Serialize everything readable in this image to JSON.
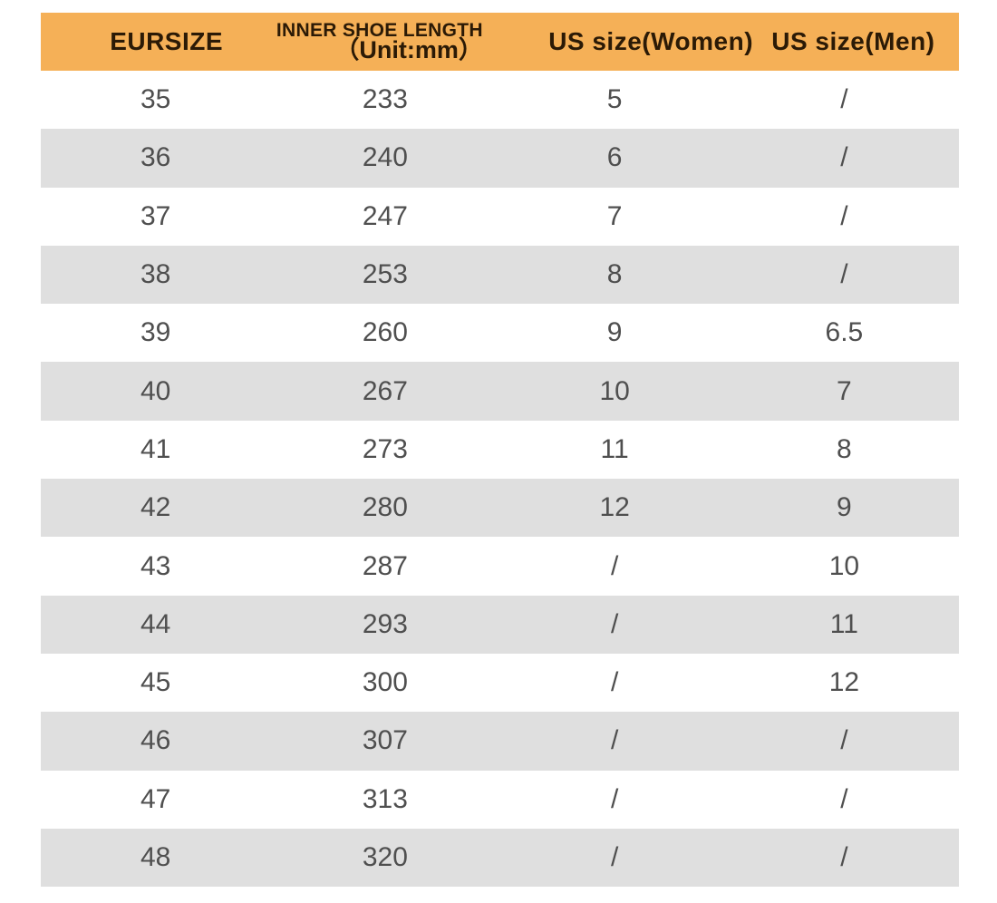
{
  "colors": {
    "header_bg": "#F5B057",
    "header_text": "#2B1A06",
    "stripe": "#DFDFDF",
    "row_bg": "#FFFFFF",
    "row_text": "#4F4F4F",
    "page_bg": "#FFFFFF"
  },
  "chart_data": {
    "type": "table",
    "title": "",
    "columns": {
      "eursize": "EURSIZE",
      "inner_length_line1": "INNER SHOE LENGTH",
      "inner_length_line2": "（Unit:mm）",
      "us_women": "US size(Women)",
      "us_men": "US size(Men)"
    },
    "rows": [
      [
        "35",
        "233",
        "5",
        "/"
      ],
      [
        "36",
        "240",
        "6",
        "/"
      ],
      [
        "37",
        "247",
        "7",
        "/"
      ],
      [
        "38",
        "253",
        "8",
        "/"
      ],
      [
        "39",
        "260",
        "9",
        "6.5"
      ],
      [
        "40",
        "267",
        "10",
        "7"
      ],
      [
        "41",
        "273",
        "11",
        "8"
      ],
      [
        "42",
        "280",
        "12",
        "9"
      ],
      [
        "43",
        "287",
        "/",
        "10"
      ],
      [
        "44",
        "293",
        "/",
        "11"
      ],
      [
        "45",
        "300",
        "/",
        "12"
      ],
      [
        "46",
        "307",
        "/",
        "/"
      ],
      [
        "47",
        "313",
        "/",
        "/"
      ],
      [
        "48",
        "320",
        "/",
        "/"
      ]
    ]
  }
}
